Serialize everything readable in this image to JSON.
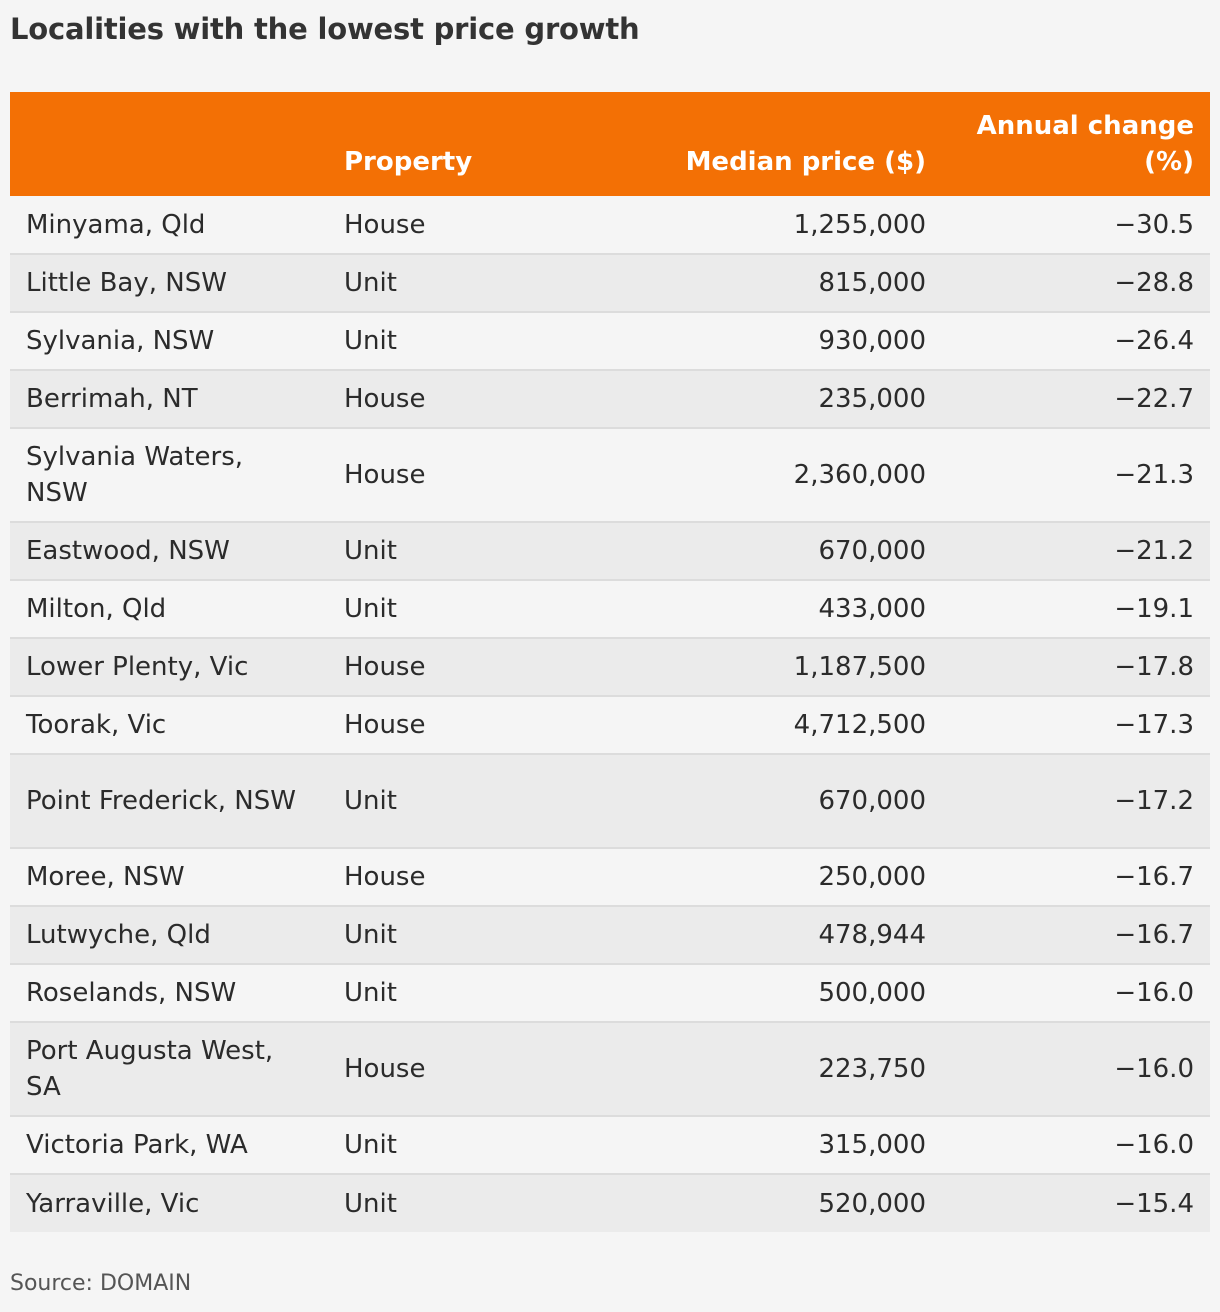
{
  "title": "Localities with the lowest price growth",
  "source": "Source: DOMAIN",
  "colors": {
    "header_background": "#f37005",
    "header_text": "#ffffff",
    "row_odd": "#f5f5f5",
    "row_even": "#ebebeb"
  },
  "chart_data": {
    "type": "table",
    "title": "Localities with the lowest price growth",
    "columns": [
      "",
      "Property",
      "Median price ($)",
      "Annual change (%)"
    ],
    "rows": [
      {
        "locality": "Minyama, Qld",
        "property": "House",
        "median_price": "1,255,000",
        "annual_change": "−30.5"
      },
      {
        "locality": "Little Bay, NSW",
        "property": "Unit",
        "median_price": "815,000",
        "annual_change": "−28.8"
      },
      {
        "locality": "Sylvania, NSW",
        "property": "Unit",
        "median_price": "930,000",
        "annual_change": "−26.4"
      },
      {
        "locality": "Berrimah, NT",
        "property": "House",
        "median_price": "235,000",
        "annual_change": "−22.7"
      },
      {
        "locality": "Sylvania Waters, NSW",
        "property": "House",
        "median_price": "2,360,000",
        "annual_change": "−21.3"
      },
      {
        "locality": "Eastwood, NSW",
        "property": "Unit",
        "median_price": "670,000",
        "annual_change": "−21.2"
      },
      {
        "locality": "Milton, Qld",
        "property": "Unit",
        "median_price": "433,000",
        "annual_change": "−19.1"
      },
      {
        "locality": "Lower Plenty, Vic",
        "property": "House",
        "median_price": "1,187,500",
        "annual_change": "−17.8"
      },
      {
        "locality": "Toorak, Vic",
        "property": "House",
        "median_price": "4,712,500",
        "annual_change": "−17.3"
      },
      {
        "locality": "Point Frederick, NSW",
        "property": "Unit",
        "median_price": "670,000",
        "annual_change": "−17.2"
      },
      {
        "locality": "Moree, NSW",
        "property": "House",
        "median_price": "250,000",
        "annual_change": "−16.7"
      },
      {
        "locality": "Lutwyche, Qld",
        "property": "Unit",
        "median_price": "478,944",
        "annual_change": "−16.7"
      },
      {
        "locality": "Roselands, NSW",
        "property": "Unit",
        "median_price": "500,000",
        "annual_change": "−16.0"
      },
      {
        "locality": "Port Augusta West, SA",
        "property": "House",
        "median_price": "223,750",
        "annual_change": "−16.0"
      },
      {
        "locality": "Victoria Park, WA",
        "property": "Unit",
        "median_price": "315,000",
        "annual_change": "−16.0"
      },
      {
        "locality": "Yarraville, Vic",
        "property": "Unit",
        "median_price": "520,000",
        "annual_change": "−15.4"
      }
    ]
  }
}
